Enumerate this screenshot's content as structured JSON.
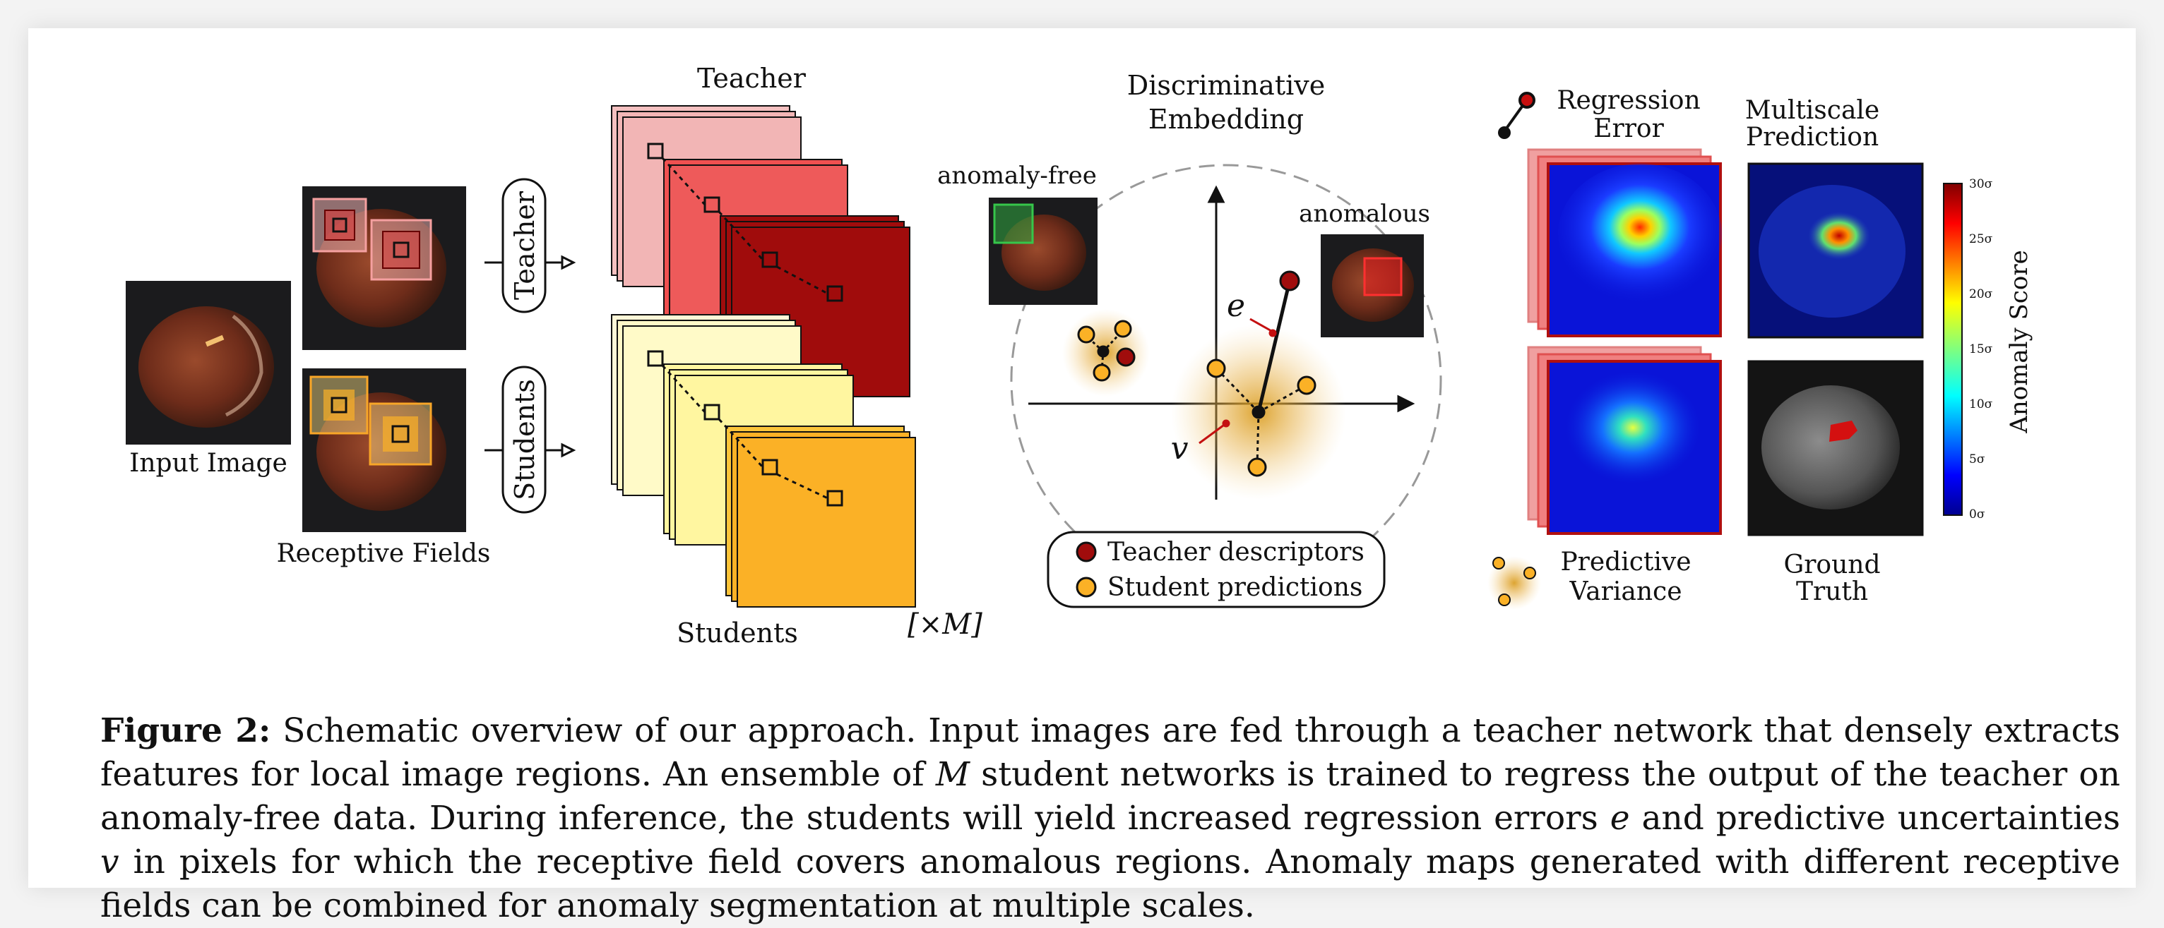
{
  "labels": {
    "input_image": "Input Image",
    "receptive_fields": "Receptive Fields",
    "teacher_pill": "Teacher",
    "students_pill": "Students",
    "teacher_stack": "Teacher",
    "students_stack": "Students",
    "ensemble_multiplier": "[×M]",
    "embedding_title_1": "Discriminative",
    "embedding_title_2": "Embedding",
    "anomaly_free": "anomaly-free",
    "anomalous": "anomalous",
    "regression_error_symbol": "e",
    "predictive_variance_symbol": "v",
    "legend_teacher": "Teacher descriptors",
    "legend_student": "Student predictions",
    "regression_error_1": "Regression",
    "regression_error_2": "Error",
    "predictive_variance_1": "Predictive",
    "predictive_variance_2": "Variance",
    "multiscale_1": "Multiscale",
    "multiscale_2": "Prediction",
    "ground_truth_1": "Ground",
    "ground_truth_2": "Truth"
  },
  "colorbar": {
    "title": "Anomaly Score",
    "ticks": [
      "30σ",
      "25σ",
      "20σ",
      "15σ",
      "10σ",
      "5σ",
      "0σ"
    ]
  },
  "caption": {
    "label": "Figure 2:",
    "text_1": " Schematic overview of our approach. Input images are fed through a teacher network that densely extracts features for local image regions. An ensemble of ",
    "var_m": "M",
    "text_2": " student networks is trained to regress the output of the teacher on anomaly-free data. During inference, the students will yield increased regression errors ",
    "var_e": "e",
    "text_3": " and predictive uncertainties ",
    "var_v": "v",
    "text_4": " in pixels for which the receptive field covers anomalous regions. Anomaly maps generated with different receptive fields can be combined for anomaly segmentation at multiple scales."
  },
  "colors": {
    "teacher_dark": "#a00c0c",
    "teacher_light": "#f2b5b5",
    "student_orange": "#fbb126",
    "student_light": "#fff8c8",
    "jet_low": "#00008f",
    "jet_high": "#800000"
  }
}
